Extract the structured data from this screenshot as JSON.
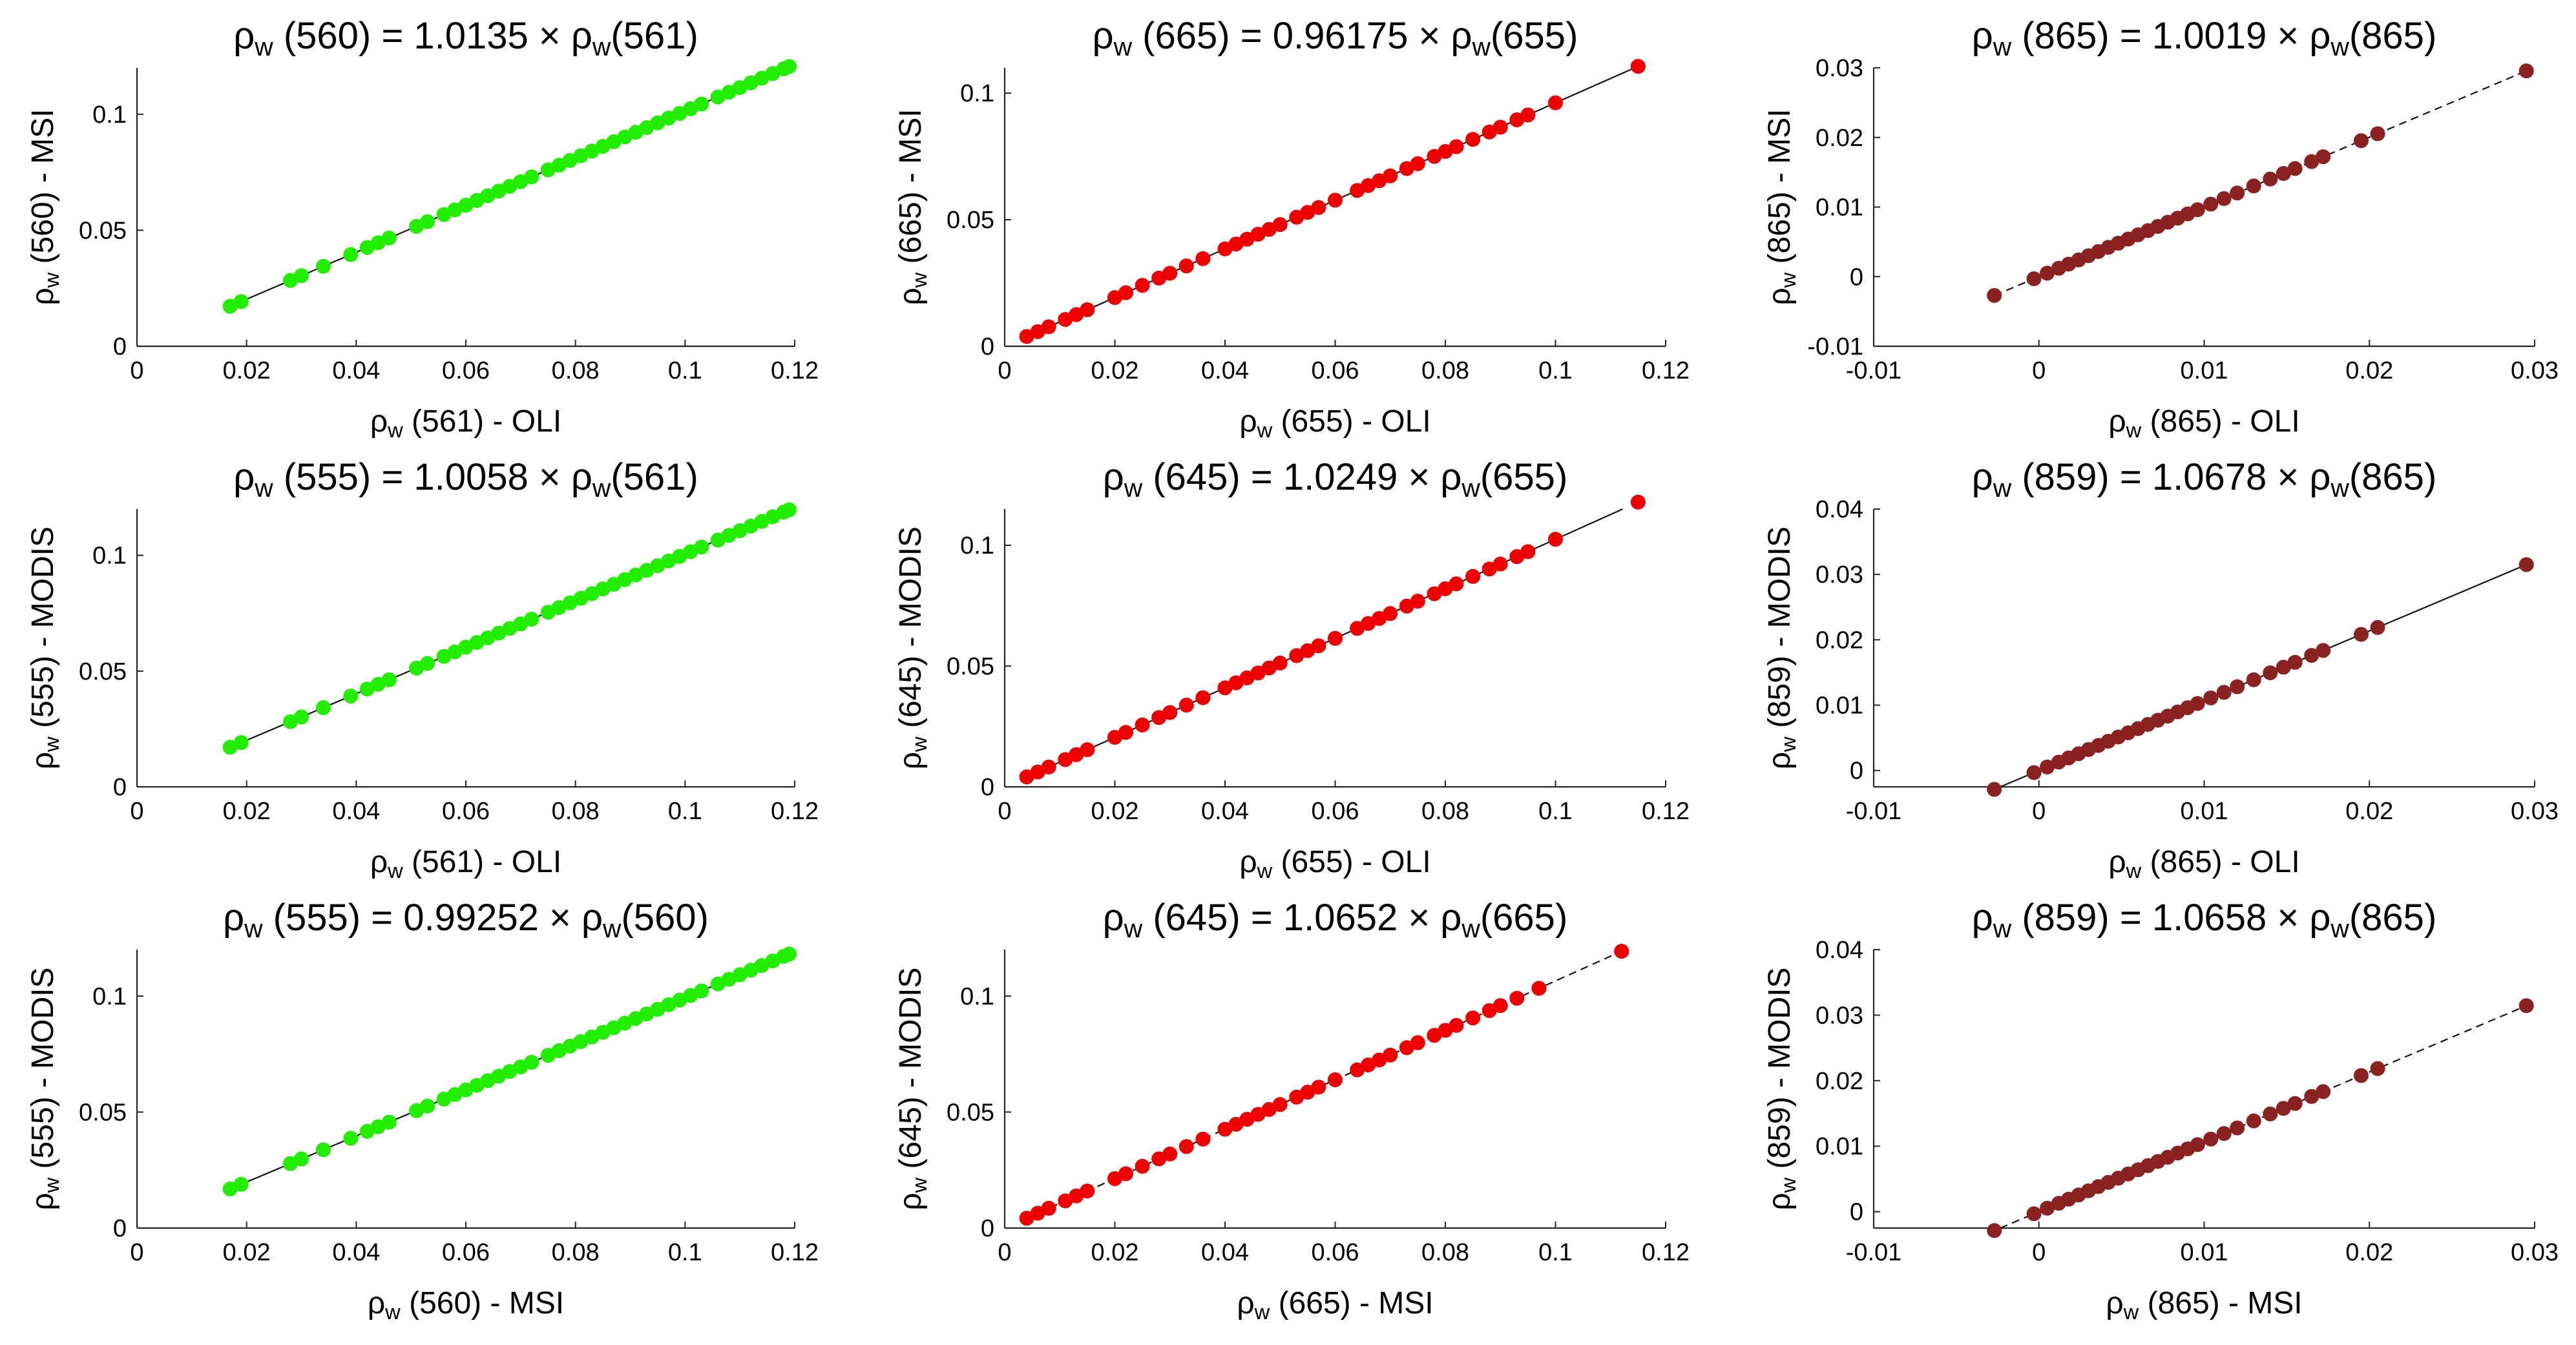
{
  "chart_data": [
    {
      "type": "scatter",
      "title": {
        "rho": "ρ",
        "sub1": "w",
        "wl1": "560",
        "eq": "= 1.0135 ×",
        "sub2": "w",
        "wl2": "561"
      },
      "xlabel": {
        "rho": "ρ",
        "sub": "w",
        "wl": "561",
        "sensor": "- OLI"
      },
      "ylabel": {
        "rho": "ρ",
        "sub": "w",
        "wl": "560",
        "sensor": "- MSI"
      },
      "xlim": [
        0,
        0.12
      ],
      "ylim": [
        0,
        0.12
      ],
      "xticks": [
        0,
        0.02,
        0.04,
        0.06,
        0.08,
        0.1,
        0.12
      ],
      "xtick_labels": [
        "0",
        "0.02",
        "0.04",
        "0.06",
        "0.08",
        "0.1",
        "0.12"
      ],
      "yticks": [
        0,
        0.05,
        0.1
      ],
      "ytick_labels": [
        "0",
        "0.05",
        "0.1"
      ],
      "color": "#22ee00",
      "slope": 1.0135,
      "line_style": "solid",
      "x": [
        0.017,
        0.019,
        0.028,
        0.03,
        0.034,
        0.039,
        0.042,
        0.044,
        0.046,
        0.051,
        0.053,
        0.056,
        0.058,
        0.06,
        0.062,
        0.064,
        0.066,
        0.068,
        0.07,
        0.072,
        0.075,
        0.077,
        0.079,
        0.081,
        0.083,
        0.085,
        0.087,
        0.089,
        0.091,
        0.093,
        0.095,
        0.097,
        0.099,
        0.101,
        0.103,
        0.106,
        0.108,
        0.11,
        0.112,
        0.114,
        0.116,
        0.118,
        0.119
      ]
    },
    {
      "type": "scatter",
      "title": {
        "rho": "ρ",
        "sub1": "w",
        "wl1": "665",
        "eq": "= 0.96175 ×",
        "sub2": "w",
        "wl2": "655"
      },
      "xlabel": {
        "rho": "ρ",
        "sub": "w",
        "wl": "655",
        "sensor": "- OLI"
      },
      "ylabel": {
        "rho": "ρ",
        "sub": "w",
        "wl": "665",
        "sensor": "- MSI"
      },
      "xlim": [
        0,
        0.12
      ],
      "ylim": [
        0,
        0.11
      ],
      "xticks": [
        0,
        0.02,
        0.04,
        0.06,
        0.08,
        0.1,
        0.12
      ],
      "xtick_labels": [
        "0",
        "0.02",
        "0.04",
        "0.06",
        "0.08",
        "0.1",
        "0.12"
      ],
      "yticks": [
        0,
        0.05,
        0.1
      ],
      "ytick_labels": [
        "0",
        "0.05",
        "0.1"
      ],
      "color": "#ee0000",
      "slope": 0.96175,
      "line_style": "solid",
      "x": [
        0.004,
        0.006,
        0.008,
        0.011,
        0.013,
        0.015,
        0.02,
        0.022,
        0.025,
        0.028,
        0.03,
        0.033,
        0.036,
        0.04,
        0.042,
        0.044,
        0.046,
        0.048,
        0.05,
        0.053,
        0.055,
        0.057,
        0.06,
        0.064,
        0.066,
        0.068,
        0.07,
        0.073,
        0.075,
        0.078,
        0.08,
        0.082,
        0.085,
        0.088,
        0.09,
        0.093,
        0.095,
        0.1,
        0.115
      ]
    },
    {
      "type": "scatter",
      "title": {
        "rho": "ρ",
        "sub1": "w",
        "wl1": "865",
        "eq": "= 1.0019 ×",
        "sub2": "w",
        "wl2": "865"
      },
      "xlabel": {
        "rho": "ρ",
        "sub": "w",
        "wl": "865",
        "sensor": "- OLI"
      },
      "ylabel": {
        "rho": "ρ",
        "sub": "w",
        "wl": "865",
        "sensor": "- MSI"
      },
      "xlim": [
        -0.01,
        0.03
      ],
      "ylim": [
        -0.01,
        0.03
      ],
      "xticks": [
        -0.01,
        0,
        0.01,
        0.02,
        0.03
      ],
      "xtick_labels": [
        "-0.01",
        "0",
        "0.01",
        "0.02",
        "0.03"
      ],
      "yticks": [
        -0.01,
        0,
        0.01,
        0.02,
        0.03
      ],
      "ytick_labels": [
        "-0.01",
        "0",
        "0.01",
        "0.02",
        "0.03"
      ],
      "color": "#8b2222",
      "slope": 1.0019,
      "line_style": "dashed",
      "x": [
        -0.0027,
        -0.0003,
        0.0005,
        0.0012,
        0.0018,
        0.0024,
        0.003,
        0.0036,
        0.0042,
        0.0048,
        0.0054,
        0.006,
        0.0066,
        0.0072,
        0.0078,
        0.0084,
        0.009,
        0.0096,
        0.0104,
        0.0112,
        0.012,
        0.013,
        0.014,
        0.0148,
        0.0155,
        0.0165,
        0.0172,
        0.0195,
        0.0205,
        0.0295
      ]
    },
    {
      "type": "scatter",
      "title": {
        "rho": "ρ",
        "sub1": "w",
        "wl1": "555",
        "eq": "= 1.0058 ×",
        "sub2": "w",
        "wl2": "561"
      },
      "xlabel": {
        "rho": "ρ",
        "sub": "w",
        "wl": "561",
        "sensor": "- OLI"
      },
      "ylabel": {
        "rho": "ρ",
        "sub": "w",
        "wl": "555",
        "sensor": "- MODIS"
      },
      "xlim": [
        0,
        0.12
      ],
      "ylim": [
        0,
        0.12
      ],
      "xticks": [
        0,
        0.02,
        0.04,
        0.06,
        0.08,
        0.1,
        0.12
      ],
      "xtick_labels": [
        "0",
        "0.02",
        "0.04",
        "0.06",
        "0.08",
        "0.1",
        "0.12"
      ],
      "yticks": [
        0,
        0.05,
        0.1
      ],
      "ytick_labels": [
        "0",
        "0.05",
        "0.1"
      ],
      "color": "#22ee00",
      "slope": 1.0058,
      "line_style": "solid",
      "x": [
        0.017,
        0.019,
        0.028,
        0.03,
        0.034,
        0.039,
        0.042,
        0.044,
        0.046,
        0.051,
        0.053,
        0.056,
        0.058,
        0.06,
        0.062,
        0.064,
        0.066,
        0.068,
        0.07,
        0.072,
        0.075,
        0.077,
        0.079,
        0.081,
        0.083,
        0.085,
        0.087,
        0.089,
        0.091,
        0.093,
        0.095,
        0.097,
        0.099,
        0.101,
        0.103,
        0.106,
        0.108,
        0.11,
        0.112,
        0.114,
        0.116,
        0.118,
        0.119
      ]
    },
    {
      "type": "scatter",
      "title": {
        "rho": "ρ",
        "sub1": "w",
        "wl1": "645",
        "eq": "= 1.0249 ×",
        "sub2": "w",
        "wl2": "655"
      },
      "xlabel": {
        "rho": "ρ",
        "sub": "w",
        "wl": "655",
        "sensor": "- OLI"
      },
      "ylabel": {
        "rho": "ρ",
        "sub": "w",
        "wl": "645",
        "sensor": "- MODIS"
      },
      "xlim": [
        0,
        0.12
      ],
      "ylim": [
        0,
        0.115
      ],
      "xticks": [
        0,
        0.02,
        0.04,
        0.06,
        0.08,
        0.1,
        0.12
      ],
      "xtick_labels": [
        "0",
        "0.02",
        "0.04",
        "0.06",
        "0.08",
        "0.1",
        "0.12"
      ],
      "yticks": [
        0,
        0.05,
        0.1
      ],
      "ytick_labels": [
        "0",
        "0.05",
        "0.1"
      ],
      "color": "#ee0000",
      "slope": 1.0249,
      "line_style": "solid",
      "x": [
        0.004,
        0.006,
        0.008,
        0.011,
        0.013,
        0.015,
        0.02,
        0.022,
        0.025,
        0.028,
        0.03,
        0.033,
        0.036,
        0.04,
        0.042,
        0.044,
        0.046,
        0.048,
        0.05,
        0.053,
        0.055,
        0.057,
        0.06,
        0.064,
        0.066,
        0.068,
        0.07,
        0.073,
        0.075,
        0.078,
        0.08,
        0.082,
        0.085,
        0.088,
        0.09,
        0.093,
        0.095,
        0.1,
        0.115
      ]
    },
    {
      "type": "scatter",
      "title": {
        "rho": "ρ",
        "sub1": "w",
        "wl1": "859",
        "eq": "= 1.0678 ×",
        "sub2": "w",
        "wl2": "865"
      },
      "xlabel": {
        "rho": "ρ",
        "sub": "w",
        "wl": "865",
        "sensor": "- OLI"
      },
      "ylabel": {
        "rho": "ρ",
        "sub": "w",
        "wl": "859",
        "sensor": "- MODIS"
      },
      "xlim": [
        -0.01,
        0.03
      ],
      "ylim": [
        -0.0025,
        0.04
      ],
      "xticks": [
        -0.01,
        0,
        0.01,
        0.02,
        0.03
      ],
      "xtick_labels": [
        "-0.01",
        "0",
        "0.01",
        "0.02",
        "0.03"
      ],
      "yticks": [
        0,
        0.01,
        0.02,
        0.03,
        0.04
      ],
      "ytick_labels": [
        "0",
        "0.01",
        "0.02",
        "0.03",
        "0.04"
      ],
      "color": "#8b2222",
      "slope": 1.0678,
      "line_style": "solid",
      "x": [
        -0.0027,
        -0.0003,
        0.0005,
        0.0012,
        0.0018,
        0.0024,
        0.003,
        0.0036,
        0.0042,
        0.0048,
        0.0054,
        0.006,
        0.0066,
        0.0072,
        0.0078,
        0.0084,
        0.009,
        0.0096,
        0.0104,
        0.0112,
        0.012,
        0.013,
        0.014,
        0.0148,
        0.0155,
        0.0165,
        0.0172,
        0.0195,
        0.0205,
        0.0295
      ]
    },
    {
      "type": "scatter",
      "title": {
        "rho": "ρ",
        "sub1": "w",
        "wl1": "555",
        "eq": "= 0.99252 ×",
        "sub2": "w",
        "wl2": "560"
      },
      "xlabel": {
        "rho": "ρ",
        "sub": "w",
        "wl": "560",
        "sensor": "- MSI"
      },
      "ylabel": {
        "rho": "ρ",
        "sub": "w",
        "wl": "555",
        "sensor": "- MODIS"
      },
      "xlim": [
        0,
        0.12
      ],
      "ylim": [
        0,
        0.12
      ],
      "xticks": [
        0,
        0.02,
        0.04,
        0.06,
        0.08,
        0.1,
        0.12
      ],
      "xtick_labels": [
        "0",
        "0.02",
        "0.04",
        "0.06",
        "0.08",
        "0.1",
        "0.12"
      ],
      "yticks": [
        0,
        0.05,
        0.1
      ],
      "ytick_labels": [
        "0",
        "0.05",
        "0.1"
      ],
      "color": "#22ee00",
      "slope": 0.99252,
      "line_style": "solid",
      "x": [
        0.017,
        0.019,
        0.028,
        0.03,
        0.034,
        0.039,
        0.042,
        0.044,
        0.046,
        0.051,
        0.053,
        0.056,
        0.058,
        0.06,
        0.062,
        0.064,
        0.066,
        0.068,
        0.07,
        0.072,
        0.075,
        0.077,
        0.079,
        0.081,
        0.083,
        0.085,
        0.087,
        0.089,
        0.091,
        0.093,
        0.095,
        0.097,
        0.099,
        0.101,
        0.103,
        0.106,
        0.108,
        0.11,
        0.112,
        0.114,
        0.116,
        0.118,
        0.119
      ]
    },
    {
      "type": "scatter",
      "title": {
        "rho": "ρ",
        "sub1": "w",
        "wl1": "645",
        "eq": "= 1.0652 ×",
        "sub2": "w",
        "wl2": "665"
      },
      "xlabel": {
        "rho": "ρ",
        "sub": "w",
        "wl": "665",
        "sensor": "- MSI"
      },
      "ylabel": {
        "rho": "ρ",
        "sub": "w",
        "wl": "645",
        "sensor": "- MODIS"
      },
      "xlim": [
        0,
        0.12
      ],
      "ylim": [
        0,
        0.12
      ],
      "xticks": [
        0,
        0.02,
        0.04,
        0.06,
        0.08,
        0.1,
        0.12
      ],
      "xtick_labels": [
        "0",
        "0.02",
        "0.04",
        "0.06",
        "0.08",
        "0.1",
        "0.12"
      ],
      "yticks": [
        0,
        0.05,
        0.1
      ],
      "ytick_labels": [
        "0",
        "0.05",
        "0.1"
      ],
      "color": "#ee0000",
      "slope": 1.0652,
      "line_style": "dashed",
      "x": [
        0.004,
        0.006,
        0.008,
        0.011,
        0.013,
        0.015,
        0.02,
        0.022,
        0.025,
        0.028,
        0.03,
        0.033,
        0.036,
        0.04,
        0.042,
        0.044,
        0.046,
        0.048,
        0.05,
        0.053,
        0.055,
        0.057,
        0.06,
        0.064,
        0.066,
        0.068,
        0.07,
        0.073,
        0.075,
        0.078,
        0.08,
        0.082,
        0.085,
        0.088,
        0.09,
        0.093,
        0.097,
        0.112
      ]
    },
    {
      "type": "scatter",
      "title": {
        "rho": "ρ",
        "sub1": "w",
        "wl1": "859",
        "eq": "= 1.0658 ×",
        "sub2": "w",
        "wl2": "865"
      },
      "xlabel": {
        "rho": "ρ",
        "sub": "w",
        "wl": "865",
        "sensor": "- MSI"
      },
      "ylabel": {
        "rho": "ρ",
        "sub": "w",
        "wl": "859",
        "sensor": "- MODIS"
      },
      "xlim": [
        -0.01,
        0.03
      ],
      "ylim": [
        -0.0025,
        0.04
      ],
      "xticks": [
        -0.01,
        0,
        0.01,
        0.02,
        0.03
      ],
      "xtick_labels": [
        "-0.01",
        "0",
        "0.01",
        "0.02",
        "0.03"
      ],
      "yticks": [
        0,
        0.01,
        0.02,
        0.03,
        0.04
      ],
      "ytick_labels": [
        "0",
        "0.01",
        "0.02",
        "0.03",
        "0.04"
      ],
      "color": "#8b2222",
      "slope": 1.0658,
      "line_style": "dashed",
      "x": [
        -0.0027,
        -0.0003,
        0.0005,
        0.0012,
        0.0018,
        0.0024,
        0.003,
        0.0036,
        0.0042,
        0.0048,
        0.0054,
        0.006,
        0.0066,
        0.0072,
        0.0078,
        0.0084,
        0.009,
        0.0096,
        0.0104,
        0.0112,
        0.012,
        0.013,
        0.014,
        0.0148,
        0.0155,
        0.0165,
        0.0172,
        0.0195,
        0.0205,
        0.0295
      ]
    }
  ]
}
